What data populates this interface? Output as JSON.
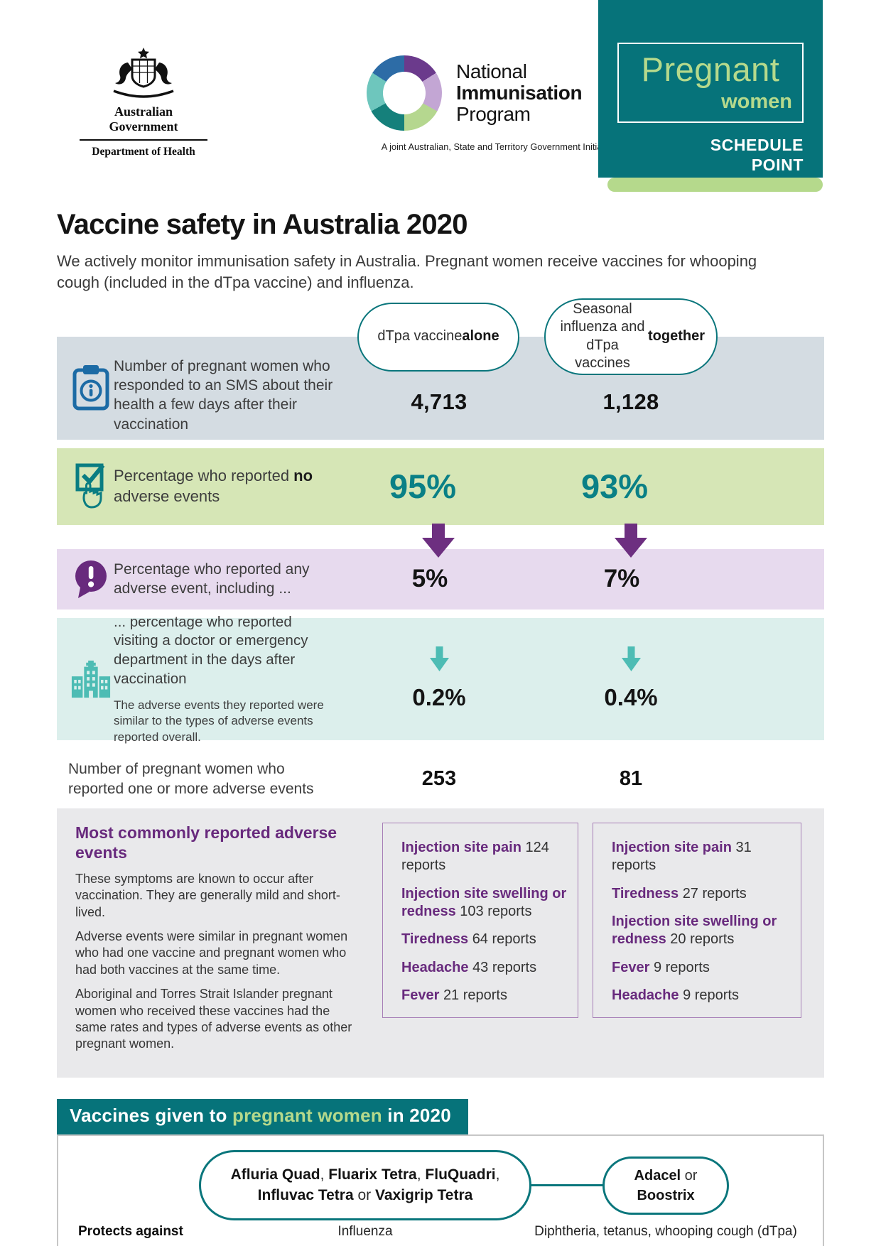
{
  "colors": {
    "teal": "#06737a",
    "teal_value": "#0a8086",
    "light_green": "#b5d98c",
    "purple": "#682a7d",
    "purple_arrow": "#6d2f80",
    "blue_icon": "#1c6ba5",
    "icon_teal": "#4dbcb4",
    "row_gray": "#d4dce2",
    "row_green": "#d6e6b6",
    "row_lavender": "#e7daee",
    "row_mint": "#dcefec",
    "panel_gray": "#e9e9eb"
  },
  "header": {
    "gov": {
      "name": "Australian Government",
      "dept": "Department of Health"
    },
    "nip": {
      "line1": "National",
      "line2": "Immunisation",
      "line3": "Program",
      "tagline": "A joint Australian, State and Territory Government Initiative"
    },
    "badge": {
      "title": "Pregnant",
      "subtitle": "women",
      "schedule_line1": "SCHEDULE",
      "schedule_line2": "POINT"
    }
  },
  "title": "Vaccine safety in Australia 2020",
  "intro": "We actively monitor immunisation safety in Australia. Pregnant women receive vaccines for whooping cough (included in the dTpa vaccine) and influenza.",
  "col_headers": {
    "col1": [
      {
        "text": "dTpa vaccine ",
        "bold": false
      },
      {
        "text": "alone",
        "bold": true
      }
    ],
    "col2": [
      {
        "text": "Seasonal influenza and dTpa vaccines ",
        "bold": false
      },
      {
        "text": "together",
        "bold": true
      }
    ]
  },
  "rows": {
    "sms": {
      "label": "Number of pregnant women who responded to an SMS about their health a few days after their vaccination",
      "v1": "4,713",
      "v2": "1,128"
    },
    "no_adverse": {
      "label": [
        {
          "text": "Percentage who reported ",
          "bold": false
        },
        {
          "text": "no",
          "bold": true
        },
        {
          "text": " adverse events",
          "bold": false
        }
      ],
      "v1": "95%",
      "v2": "93%"
    },
    "any_adverse": {
      "label": "Percentage who reported any adverse event, including ...",
      "v1": "5%",
      "v2": "7%"
    },
    "doctor_visit": {
      "label": "... percentage who reported visiting a doctor or emergency department in the days after vaccination",
      "note": "The adverse events they reported were similar to the types of adverse events reported overall.",
      "v1": "0.2%",
      "v2": "0.4%"
    },
    "reported_count": {
      "label": "Number of pregnant women who reported one or more adverse events",
      "v1": "253",
      "v2": "81"
    }
  },
  "adverse": {
    "heading": "Most commonly reported adverse events",
    "paragraphs": [
      "These symptoms are known to occur after vaccination. They are generally mild and short-lived.",
      "Adverse events were similar in pregnant women who had one vaccine and pregnant women who had both vaccines at the same time.",
      "Aboriginal and Torres Strait Islander pregnant women who received these vaccines had the same rates and types of adverse events as other pregnant women."
    ],
    "box1": {
      "items": [
        {
          "name": "Injection site pain",
          "count": "124 reports"
        },
        {
          "name": "Injection site swelling or redness",
          "count": "103 reports"
        },
        {
          "name": "Tiredness",
          "count": "64 reports"
        },
        {
          "name": "Headache",
          "count": "43 reports"
        },
        {
          "name": "Fever",
          "count": "21 reports"
        }
      ]
    },
    "box2": {
      "items": [
        {
          "name": "Injection site pain",
          "count": "31 reports"
        },
        {
          "name": "Tiredness",
          "count": "27 reports"
        },
        {
          "name": "Injection site swelling or redness",
          "count": "20 reports"
        },
        {
          "name": "Fever",
          "count": "9 reports"
        },
        {
          "name": "Headache",
          "count": "9 reports"
        }
      ]
    }
  },
  "vaccines": {
    "heading_pre": "Vaccines given to ",
    "heading_highlight": "pregnant women",
    "heading_post": " in 2020",
    "flu_pill_line1": [
      {
        "text": "Afluria Quad",
        "bold": true
      },
      {
        "text": ", ",
        "bold": false
      },
      {
        "text": "Fluarix Tetra",
        "bold": true
      },
      {
        "text": ", ",
        "bold": false
      },
      {
        "text": "FluQuadri",
        "bold": true
      },
      {
        "text": ",",
        "bold": false
      }
    ],
    "flu_pill_line2": [
      {
        "text": "Influvac Tetra",
        "bold": true
      },
      {
        "text": " or ",
        "bold": false
      },
      {
        "text": "Vaxigrip Tetra",
        "bold": true
      }
    ],
    "dtpa_pill_line1": [
      {
        "text": "Adacel",
        "bold": true
      },
      {
        "text": " or",
        "bold": false
      }
    ],
    "dtpa_pill_line2": [
      {
        "text": "Boostrix",
        "bold": true
      }
    ],
    "protects_label": "Protects against",
    "protects_flu": "Influenza",
    "protects_dtpa": "Diphtheria, tetanus, whooping cough (dTpa)"
  }
}
